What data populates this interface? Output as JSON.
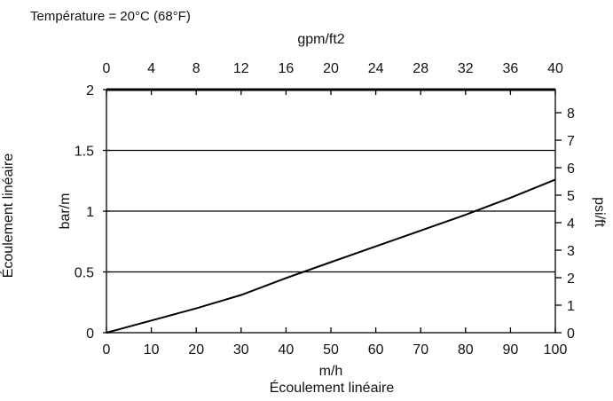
{
  "chart_data": {
    "type": "line",
    "title": "Température = 20°C (68°F)",
    "x_bottom": {
      "label": "m/h",
      "secondary_label": "Écoulement linéaire",
      "range": [
        0,
        100
      ],
      "ticks": [
        "0",
        "10",
        "20",
        "30",
        "40",
        "50",
        "60",
        "70",
        "80",
        "90",
        "100"
      ]
    },
    "x_top": {
      "label": "gpm/ft2",
      "range": [
        0,
        40
      ],
      "ticks": [
        "0",
        "4",
        "8",
        "12",
        "16",
        "20",
        "24",
        "28",
        "32",
        "36",
        "40"
      ]
    },
    "y_left": {
      "label": "bar/m",
      "outer_label": "Écoulement linéaire",
      "range": [
        0,
        2
      ],
      "ticks": [
        "0",
        "0.5",
        "1",
        "1.5",
        "2"
      ]
    },
    "y_right": {
      "label": "psi/ft",
      "range": [
        0,
        8.84
      ],
      "ticks": [
        "0",
        "1",
        "2",
        "3",
        "4",
        "5",
        "6",
        "7",
        "8"
      ]
    },
    "grid": {
      "horizontal": true,
      "vertical": false
    },
    "series": [
      {
        "x": [
          0,
          10,
          20,
          30,
          40,
          50,
          60,
          70,
          80,
          90,
          100
        ],
        "y": [
          0,
          0.1,
          0.2,
          0.31,
          0.45,
          0.58,
          0.71,
          0.84,
          0.97,
          1.11,
          1.26
        ]
      }
    ],
    "colors": {
      "line": "#000000",
      "grid": "#000000"
    }
  }
}
